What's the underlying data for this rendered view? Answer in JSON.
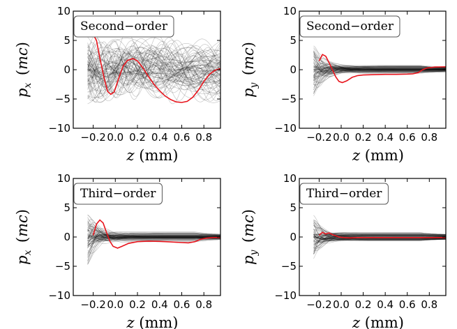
{
  "colors": {
    "highlight": "#e8141c",
    "trajectories": "#000000",
    "frame": "#000000"
  },
  "chart_data": [
    {
      "type": "line",
      "panel_label": "Second−order",
      "xlabel": {
        "var": "z",
        "unit": " (mm)"
      },
      "ylabel": {
        "var": "p",
        "sub": "x",
        "unit": "(mc)"
      },
      "xlim": [
        -0.38,
        0.95
      ],
      "ylim": [
        -10,
        10
      ],
      "xticks": [
        {
          "v": -0.2,
          "label": "−0.2"
        },
        {
          "v": 0.0,
          "label": "0.0"
        },
        {
          "v": 0.2,
          "label": "0.2"
        },
        {
          "v": 0.4,
          "label": "0.4"
        },
        {
          "v": 0.6,
          "label": "0.6"
        },
        {
          "v": 0.8,
          "label": "0.8"
        }
      ],
      "yticks": [
        {
          "v": 10,
          "label": "10"
        },
        {
          "v": 5,
          "label": "5"
        },
        {
          "v": 0,
          "label": "0"
        },
        {
          "v": -5,
          "label": "−5"
        },
        {
          "v": -10,
          "label": "−10"
        }
      ],
      "background": {
        "count": 80,
        "amp": 6.0,
        "settle": 0.18,
        "late_scale": 1.4,
        "osc": true
      },
      "highlight": {
        "x": [
          -0.2,
          -0.17,
          -0.14,
          -0.1,
          -0.07,
          -0.04,
          -0.01,
          0.03,
          0.07,
          0.11,
          0.16,
          0.2,
          0.25,
          0.3,
          0.35,
          0.4,
          0.45,
          0.5,
          0.55,
          0.6,
          0.65,
          0.7,
          0.75,
          0.8,
          0.85,
          0.9,
          0.95
        ],
        "y": [
          6.0,
          5.0,
          2.0,
          -1.5,
          -3.7,
          -4.2,
          -3.8,
          -1.5,
          0.6,
          1.6,
          1.9,
          1.5,
          0.3,
          -1.2,
          -2.5,
          -3.6,
          -4.5,
          -5.1,
          -5.5,
          -5.6,
          -5.4,
          -4.7,
          -3.5,
          -2.0,
          -0.8,
          -0.1,
          0.2
        ]
      }
    },
    {
      "type": "line",
      "panel_label": "Second−order",
      "xlabel": {
        "var": "z",
        "unit": " (mm)"
      },
      "ylabel": {
        "var": "p",
        "sub": "y",
        "unit": "(mc)"
      },
      "xlim": [
        -0.38,
        0.95
      ],
      "ylim": [
        -10,
        10
      ],
      "xticks": [
        {
          "v": -0.2,
          "label": "−0.2"
        },
        {
          "v": 0.0,
          "label": "0.0"
        },
        {
          "v": 0.2,
          "label": "0.2"
        },
        {
          "v": 0.4,
          "label": "0.4"
        },
        {
          "v": 0.6,
          "label": "0.6"
        },
        {
          "v": 0.8,
          "label": "0.8"
        }
      ],
      "yticks": [
        {
          "v": 10,
          "label": "10"
        },
        {
          "v": 5,
          "label": "5"
        },
        {
          "v": 0,
          "label": "0"
        },
        {
          "v": -5,
          "label": "−5"
        },
        {
          "v": -10,
          "label": "−10"
        }
      ],
      "background": {
        "count": 80,
        "amp": 4.5,
        "settle": 2.2,
        "late_scale": 0.2,
        "osc": false
      },
      "highlight": {
        "x": [
          -0.2,
          -0.17,
          -0.14,
          -0.11,
          -0.08,
          -0.05,
          -0.02,
          0.01,
          0.05,
          0.1,
          0.15,
          0.2,
          0.3,
          0.4,
          0.5,
          0.6,
          0.65,
          0.7,
          0.74,
          0.78,
          0.85,
          0.95
        ],
        "y": [
          1.5,
          2.6,
          2.3,
          1.2,
          0.0,
          -1.2,
          -2.0,
          -2.2,
          -1.9,
          -1.3,
          -1.0,
          -0.9,
          -0.85,
          -0.8,
          -0.8,
          -0.75,
          -0.7,
          -0.5,
          0.0,
          0.3,
          0.45,
          0.5
        ]
      }
    },
    {
      "type": "line",
      "panel_label": "Third−order",
      "xlabel": {
        "var": "z",
        "unit": " (mm)"
      },
      "ylabel": {
        "var": "p",
        "sub": "x",
        "unit": "(mc)"
      },
      "xlim": [
        -0.38,
        0.95
      ],
      "ylim": [
        -10,
        10
      ],
      "xticks": [
        {
          "v": -0.2,
          "label": "−0.2"
        },
        {
          "v": 0.0,
          "label": "0.0"
        },
        {
          "v": 0.2,
          "label": "0.2"
        },
        {
          "v": 0.4,
          "label": "0.4"
        },
        {
          "v": 0.6,
          "label": "0.6"
        },
        {
          "v": 0.8,
          "label": "0.8"
        }
      ],
      "yticks": [
        {
          "v": 10,
          "label": "10"
        },
        {
          "v": 5,
          "label": "5"
        },
        {
          "v": 0,
          "label": "0"
        },
        {
          "v": -5,
          "label": "−5"
        },
        {
          "v": -10,
          "label": "−10"
        }
      ],
      "background": {
        "count": 80,
        "amp": 5.0,
        "settle": 2.4,
        "late_scale": 0.25,
        "osc": false
      },
      "highlight": {
        "x": [
          -0.2,
          -0.17,
          -0.14,
          -0.11,
          -0.08,
          -0.05,
          -0.02,
          0.02,
          0.06,
          0.12,
          0.2,
          0.3,
          0.4,
          0.5,
          0.6,
          0.66,
          0.72,
          0.77,
          0.82,
          0.88,
          0.95
        ],
        "y": [
          0.3,
          2.2,
          2.9,
          2.4,
          0.8,
          -0.7,
          -1.6,
          -1.9,
          -1.6,
          -1.1,
          -0.8,
          -0.7,
          -0.75,
          -0.85,
          -0.95,
          -1.0,
          -0.8,
          -0.4,
          -0.2,
          -0.1,
          -0.1
        ]
      }
    },
    {
      "type": "line",
      "panel_label": "Third−order",
      "xlabel": {
        "var": "z",
        "unit": " (mm)"
      },
      "ylabel": {
        "var": "p",
        "sub": "y",
        "unit": "(mc)"
      },
      "xlim": [
        -0.38,
        0.95
      ],
      "ylim": [
        -10,
        10
      ],
      "xticks": [
        {
          "v": -0.2,
          "label": "−0.2"
        },
        {
          "v": 0.0,
          "label": "0.0"
        },
        {
          "v": 0.2,
          "label": "0.2"
        },
        {
          "v": 0.4,
          "label": "0.4"
        },
        {
          "v": 0.6,
          "label": "0.6"
        },
        {
          "v": 0.8,
          "label": "0.8"
        }
      ],
      "yticks": [
        {
          "v": 10,
          "label": "10"
        },
        {
          "v": 5,
          "label": "5"
        },
        {
          "v": 0,
          "label": "0"
        },
        {
          "v": -5,
          "label": "−5"
        },
        {
          "v": -10,
          "label": "−10"
        }
      ],
      "background": {
        "count": 80,
        "amp": 4.0,
        "settle": 2.8,
        "late_scale": 0.15,
        "osc": false
      },
      "highlight": {
        "x": [
          -0.2,
          -0.17,
          -0.14,
          -0.11,
          -0.08,
          -0.05,
          -0.02,
          0.02,
          0.08,
          0.15,
          0.25,
          0.4,
          0.55,
          0.7,
          0.8,
          0.95
        ],
        "y": [
          0.3,
          0.8,
          0.5,
          0.7,
          0.4,
          0.2,
          0.0,
          -0.1,
          -0.15,
          -0.1,
          -0.1,
          -0.1,
          -0.1,
          -0.1,
          -0.1,
          -0.1
        ]
      }
    }
  ]
}
